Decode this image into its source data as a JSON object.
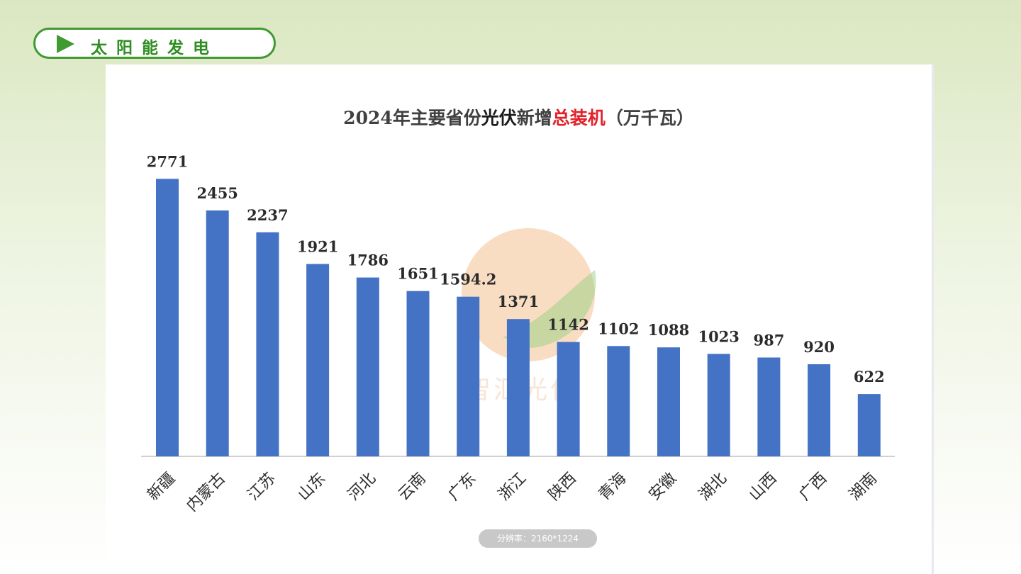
{
  "header": {
    "section_title": "太阳能发电"
  },
  "chart_data": {
    "type": "bar",
    "title_parts": [
      "2024年主要省份",
      "光伏",
      "新增",
      "总装机",
      "（万千瓦）"
    ],
    "categories": [
      "新疆",
      "内蒙古",
      "江苏",
      "山东",
      "河北",
      "云南",
      "广东",
      "浙江",
      "陕西",
      "青海",
      "安徽",
      "湖北",
      "山西",
      "广西",
      "湖南"
    ],
    "values": [
      2771,
      2455,
      2237,
      1921,
      1786,
      1651,
      1594.2,
      1371,
      1142,
      1102,
      1088,
      1023,
      987,
      920,
      622
    ],
    "value_labels": [
      "2771",
      "2455",
      "2237",
      "1921",
      "1786",
      "1651",
      "1594.2",
      "1371",
      "1142",
      "1102",
      "1088",
      "1023",
      "987",
      "920",
      "622"
    ],
    "ylim": [
      0,
      3000
    ],
    "grid": false,
    "legend": false,
    "bar_color": "#4472c4",
    "title_highlight_color": "#e0222b"
  },
  "watermark": {
    "text": "智汇光伏"
  },
  "resolution_badge": "分辨率：2160*1224"
}
